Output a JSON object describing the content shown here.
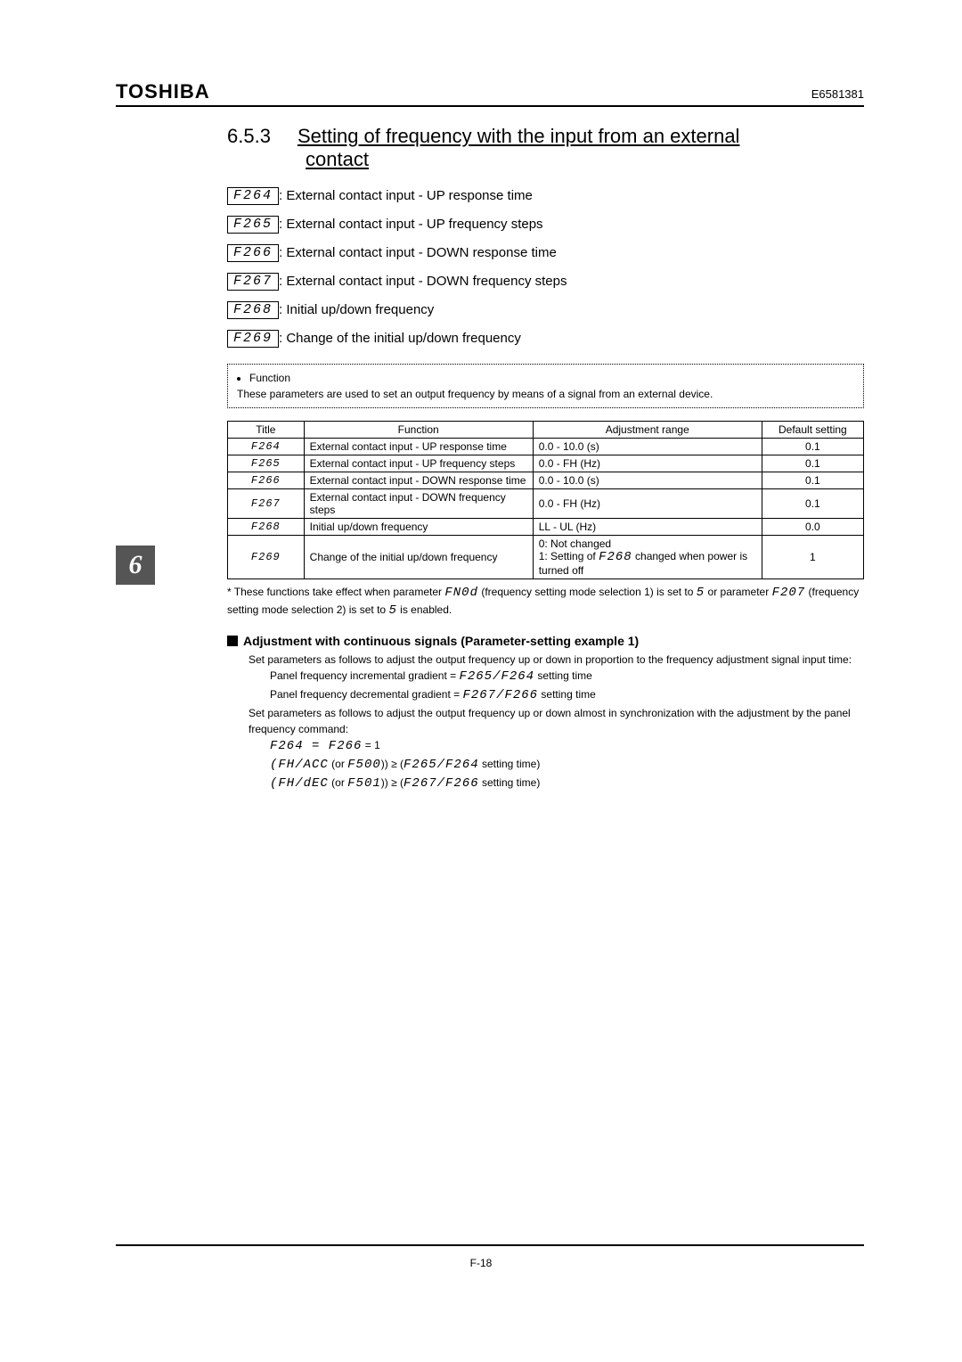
{
  "header": {
    "brand": "TOSHIBA",
    "docnum": "E6581381"
  },
  "section": {
    "number": "6.5.3",
    "title_line1": "Setting of frequency with the input from an external",
    "title_line2": "contact"
  },
  "chapter_tab": "6",
  "params": [
    {
      "code": "F264",
      "desc": ": External contact input - UP response time"
    },
    {
      "code": "F265",
      "desc": ": External contact input - UP frequency steps"
    },
    {
      "code": "F266",
      "desc": ": External contact input - DOWN response time"
    },
    {
      "code": "F267",
      "desc": ": External contact input - DOWN frequency steps"
    },
    {
      "code": "F268",
      "desc": ": Initial up/down frequency"
    },
    {
      "code": "F269",
      "desc": ": Change of the initial up/down frequency"
    }
  ],
  "function_box": {
    "label": "Function",
    "text": "These parameters are used to set an output frequency by means of a signal from an external device."
  },
  "table": {
    "headers": [
      "Title",
      "Function",
      "Adjustment range",
      "Default setting"
    ],
    "rows": [
      {
        "title": "F264",
        "function": "External contact input - UP response time",
        "range": "0.0 - 10.0 (s)",
        "default": "0.1"
      },
      {
        "title": "F265",
        "function": "External contact input - UP frequency steps",
        "range": "0.0 - FH (Hz)",
        "default": "0.1"
      },
      {
        "title": "F266",
        "function": "External contact input - DOWN response time",
        "range": "0.0 - 10.0 (s)",
        "default": "0.1"
      },
      {
        "title": "F267",
        "function": "External contact input - DOWN frequency steps",
        "range": "0.0 - FH (Hz)",
        "default": "0.1"
      },
      {
        "title": "F268",
        "function": "Initial up/down frequency",
        "range": "LL - UL (Hz)",
        "default": "0.0"
      },
      {
        "title": "F269",
        "function": "Change of the initial up/down frequency",
        "range_html": "0: Not changed<br>1: Setting of <span class='seg-inline'>F268</span> changed when power is turned off",
        "default": "1"
      }
    ]
  },
  "footnote": {
    "pre": "* These functions take effect when parameter ",
    "p1": "FN0d",
    "mid1": " (frequency setting mode selection 1) is set to ",
    "v5a": "5",
    "mid2": " or parameter ",
    "p2": "F207",
    "mid3": " (frequency setting mode selection 2) is set to ",
    "v5b": "5",
    "end": " is enabled."
  },
  "adjustment": {
    "title": "Adjustment with continuous signals (Parameter-setting example 1)",
    "line1": "Set parameters as follows to adjust the output frequency up or down in proportion to the frequency adjustment signal input time:",
    "line2_pre": "Panel frequency incremental gradient = ",
    "line2_code": "F265/F264",
    "line2_post": " setting time",
    "line3_pre": "Panel frequency decremental gradient = ",
    "line3_code": "F267/F266",
    "line3_post": " setting time",
    "line4": "Set parameters as follows to adjust the output frequency up or down almost in synchronization with the adjustment by the panel frequency command:",
    "line5": "F264 = F266",
    "line5_post": " = 1",
    "line6_a": "(FH/ACC",
    "line6_b": "  (or ",
    "line6_c": "F500",
    "line6_d": ")) ≥ (",
    "line6_e": "F265/F264",
    "line6_f": " setting time)",
    "line7_a": "(FH/dEC",
    "line7_b": "  (or ",
    "line7_c": "F501",
    "line7_d": ")) ≥ (",
    "line7_e": "F267/F266",
    "line7_f": " setting time)"
  },
  "page_number": "F-18"
}
